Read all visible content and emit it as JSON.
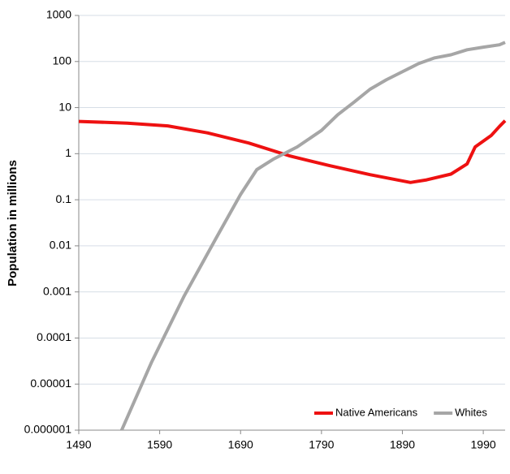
{
  "chart_data": {
    "type": "line",
    "y_label": "Population in millions",
    "log_y": true,
    "grid": true,
    "legend": "bottom-right",
    "xlim": [
      1490,
      2017
    ],
    "xticks": [
      1490,
      1590,
      1690,
      1790,
      1890,
      1990
    ],
    "ylim": [
      1e-06,
      1000
    ],
    "yticks": [
      1000,
      100,
      10,
      1,
      0.1,
      0.01,
      0.001,
      0.0001,
      1e-05,
      1e-06
    ],
    "series": [
      {
        "name": "Native Americans",
        "color": "#ee1111",
        "x": [
          1490,
          1550,
          1600,
          1650,
          1700,
          1750,
          1800,
          1850,
          1900,
          1920,
          1950,
          1970,
          1980,
          2000,
          2010,
          2017
        ],
        "values": [
          5,
          4.6,
          4,
          2.8,
          1.7,
          0.9,
          0.55,
          0.35,
          0.237,
          0.27,
          0.36,
          0.6,
          1.4,
          2.5,
          3.9,
          5.2
        ]
      },
      {
        "name": "Whites",
        "color": "#a6a6a6",
        "x": [
          1543,
          1580,
          1620,
          1660,
          1690,
          1710,
          1730,
          1760,
          1790,
          1810,
          1830,
          1850,
          1870,
          1890,
          1910,
          1930,
          1950,
          1970,
          1990,
          2010,
          2017
        ],
        "values": [
          1e-06,
          3e-05,
          0.0008,
          0.015,
          0.13,
          0.45,
          0.75,
          1.4,
          3.2,
          7,
          13,
          25,
          40,
          60,
          90,
          120,
          140,
          180,
          205,
          230,
          260
        ]
      }
    ]
  }
}
